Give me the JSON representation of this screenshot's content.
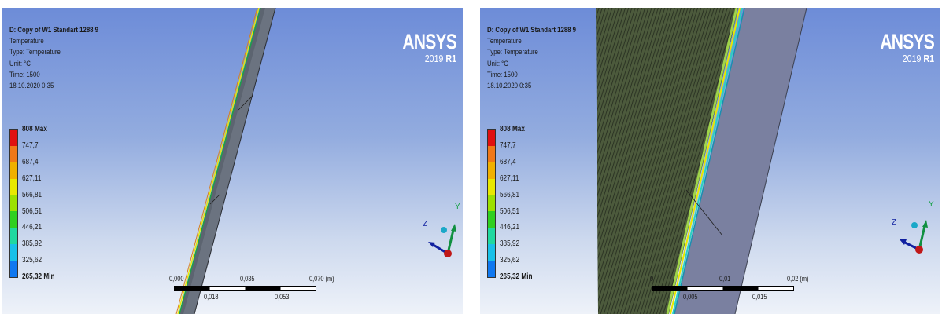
{
  "viewports": [
    {
      "info": {
        "title": "D: Copy of W1 Standart 1288 9",
        "line1": "Temperature",
        "line2": "Type: Temperature",
        "line3": "Unit: °C",
        "line4": "Time: 1500",
        "line5": "18.10.2020 0:35"
      },
      "logo": {
        "brand": "ANSYS",
        "version": "2019",
        "release": "R1"
      },
      "legend": [
        "808 Max",
        "747,7",
        "687,4",
        "627,11",
        "566,81",
        "506,51",
        "446,21",
        "385,92",
        "325,62",
        "265,32 Min"
      ],
      "axes": {
        "x": "Z",
        "y": "Y"
      },
      "scale": {
        "top": [
          "0,000",
          "0,035",
          "0,070 (m)"
        ],
        "bottom": [
          "0,018",
          "0,053"
        ]
      }
    },
    {
      "info": {
        "title": "D: Copy of W1 Standart 1288 9",
        "line1": "Temperature",
        "line2": "Type: Temperature",
        "line3": "Unit: °C",
        "line4": "Time: 1500",
        "line5": "18.10.2020 0:35"
      },
      "logo": {
        "brand": "ANSYS",
        "version": "2019",
        "release": "R1"
      },
      "legend": [
        "808 Max",
        "747,7",
        "687,4",
        "627,11",
        "566,81",
        "506,51",
        "446,21",
        "385,92",
        "325,62",
        "265,32 Min"
      ],
      "axes": {
        "x": "Z",
        "y": "Y"
      },
      "scale": {
        "top": [
          "0",
          "0,01",
          "0,02 (m)"
        ],
        "bottom": [
          "0,005",
          "0,015"
        ]
      }
    }
  ],
  "legend_colors": [
    "#e01010",
    "#f07818",
    "#f0b000",
    "#e8e800",
    "#9ce000",
    "#30d020",
    "#20d8a0",
    "#18c0e8",
    "#1078f0",
    "#0010c8"
  ]
}
